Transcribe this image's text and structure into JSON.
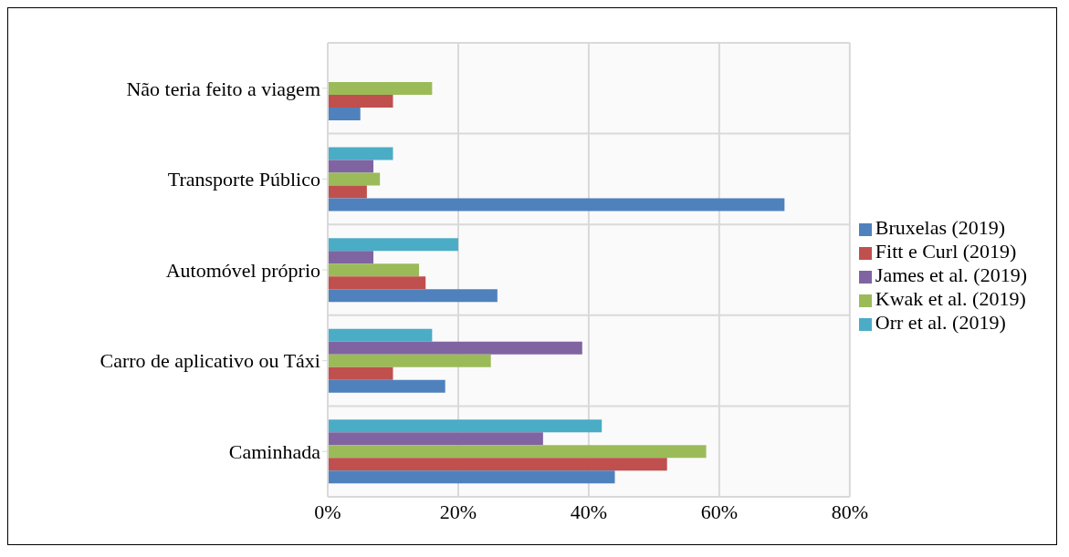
{
  "chart_data": {
    "type": "bar",
    "orientation": "horizontal",
    "categories": [
      "Não teria feito a viagem",
      "Transporte Público",
      "Automóvel próprio",
      "Carro de aplicativo ou Táxi",
      "Caminhada"
    ],
    "series": [
      {
        "name": "Orr et al. (2019)",
        "color": "#4bacc6",
        "values": [
          null,
          10,
          20,
          16,
          42
        ]
      },
      {
        "name": "James et al. (2019)",
        "color": "#8064a2",
        "values": [
          null,
          7,
          7,
          39,
          33
        ]
      },
      {
        "name": "Kwak et al. (2019)",
        "color": "#9bbb59",
        "values": [
          16,
          8,
          14,
          25,
          58
        ]
      },
      {
        "name": "Fitt e Curl (2019)",
        "color": "#c0504d",
        "values": [
          10,
          6,
          15,
          10,
          52
        ]
      },
      {
        "name": "Bruxelas (2019)",
        "color": "#4f81bd",
        "values": [
          5,
          70,
          26,
          18,
          44
        ]
      }
    ],
    "xlim": [
      0,
      80
    ],
    "xticks": [
      {
        "value": 0,
        "label": "0%"
      },
      {
        "value": 20,
        "label": "20%"
      },
      {
        "value": 40,
        "label": "40%"
      },
      {
        "value": 60,
        "label": "60%"
      },
      {
        "value": 80,
        "label": "80%"
      }
    ],
    "grid": true,
    "legend": "right"
  }
}
